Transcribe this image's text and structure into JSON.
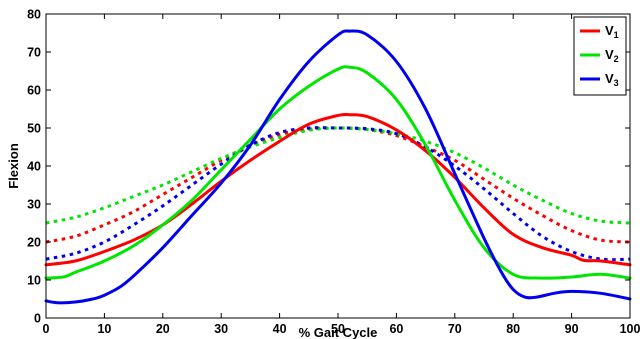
{
  "chart_data": {
    "type": "line",
    "title": "",
    "xlabel": "% Gait Cycle",
    "ylabel": "Flexion",
    "xlim": [
      0,
      100
    ],
    "ylim": [
      0,
      80
    ],
    "xticks": [
      0,
      10,
      20,
      30,
      40,
      50,
      60,
      70,
      80,
      90,
      100
    ],
    "yticks": [
      0,
      10,
      20,
      30,
      40,
      50,
      60,
      70,
      80
    ],
    "grid": false,
    "legend_position": "top-right",
    "series": [
      {
        "name": "V1",
        "label_main": "V",
        "label_sub": "1",
        "color": "#ff0000",
        "style": "solid",
        "x": [
          0,
          5,
          10,
          15,
          20,
          25,
          30,
          35,
          40,
          45,
          50,
          52,
          55,
          60,
          65,
          70,
          75,
          80,
          85,
          90,
          92,
          95,
          100
        ],
        "y": [
          14,
          15,
          17.5,
          20.5,
          24.5,
          30,
          36,
          41.5,
          46.5,
          51,
          53.3,
          53.5,
          53,
          49.5,
          44,
          37,
          29,
          22,
          18.5,
          16.5,
          15.2,
          15,
          14
        ]
      },
      {
        "name": "V2",
        "label_main": "V",
        "label_sub": "2",
        "color": "#00e600",
        "style": "solid",
        "x": [
          0,
          3,
          5,
          10,
          15,
          20,
          25,
          30,
          35,
          40,
          45,
          50,
          52,
          55,
          60,
          65,
          70,
          75,
          80,
          85,
          90,
          95,
          100
        ],
        "y": [
          10.5,
          10.8,
          12,
          15,
          19,
          24.5,
          31,
          39,
          47,
          55,
          61,
          65.5,
          66,
          64.5,
          57.5,
          45.5,
          31,
          18.5,
          11.5,
          10.5,
          10.8,
          11.5,
          10.5
        ]
      },
      {
        "name": "V3",
        "label_main": "V",
        "label_sub": "3",
        "color": "#0000ee",
        "style": "solid",
        "x": [
          0,
          2,
          5,
          8,
          10,
          13,
          16,
          20,
          25,
          30,
          35,
          40,
          45,
          50,
          52,
          55,
          60,
          65,
          70,
          75,
          78,
          80,
          82,
          84,
          87,
          90,
          95,
          100
        ],
        "y": [
          4.5,
          4,
          4.2,
          5,
          6,
          8.5,
          12.5,
          18.5,
          27,
          35.5,
          45.5,
          57.5,
          67.5,
          74.5,
          75.5,
          74.5,
          67.5,
          55,
          38,
          21,
          12,
          7.5,
          5.5,
          5.5,
          6.5,
          7,
          6.5,
          5
        ]
      },
      {
        "name": "V1 (dotted)",
        "color": "#ff0000",
        "style": "dotted",
        "x": [
          0,
          5,
          10,
          15,
          20,
          25,
          30,
          35,
          40,
          45,
          50,
          55,
          60,
          65,
          70,
          75,
          80,
          85,
          90,
          95,
          100
        ],
        "y": [
          20,
          21.5,
          24.5,
          28,
          32.5,
          37,
          41.5,
          45.5,
          48.3,
          49.7,
          50,
          49.6,
          48,
          45,
          41.5,
          36.5,
          31.5,
          27,
          23,
          20.5,
          20
        ]
      },
      {
        "name": "V2 (dotted)",
        "color": "#00e600",
        "style": "dotted",
        "x": [
          0,
          5,
          10,
          15,
          20,
          25,
          30,
          35,
          40,
          45,
          50,
          55,
          60,
          65,
          70,
          75,
          80,
          85,
          90,
          95,
          100
        ],
        "y": [
          25,
          26.5,
          29,
          32,
          35,
          38.5,
          42,
          45,
          47.5,
          49.4,
          50,
          49.6,
          48.5,
          46.5,
          43.5,
          39.5,
          35,
          31,
          27.5,
          25.5,
          25
        ]
      },
      {
        "name": "V3 (dotted)",
        "color": "#0000ee",
        "style": "dotted",
        "x": [
          0,
          5,
          10,
          15,
          20,
          25,
          30,
          35,
          40,
          45,
          50,
          55,
          60,
          65,
          70,
          75,
          80,
          85,
          90,
          95,
          100
        ],
        "y": [
          15.5,
          17,
          20,
          24.5,
          29.5,
          35,
          40.5,
          45.5,
          48.8,
          50,
          50,
          49.8,
          48.5,
          45,
          40,
          34,
          27.5,
          21.5,
          17.5,
          15.5,
          15.5
        ]
      }
    ]
  }
}
